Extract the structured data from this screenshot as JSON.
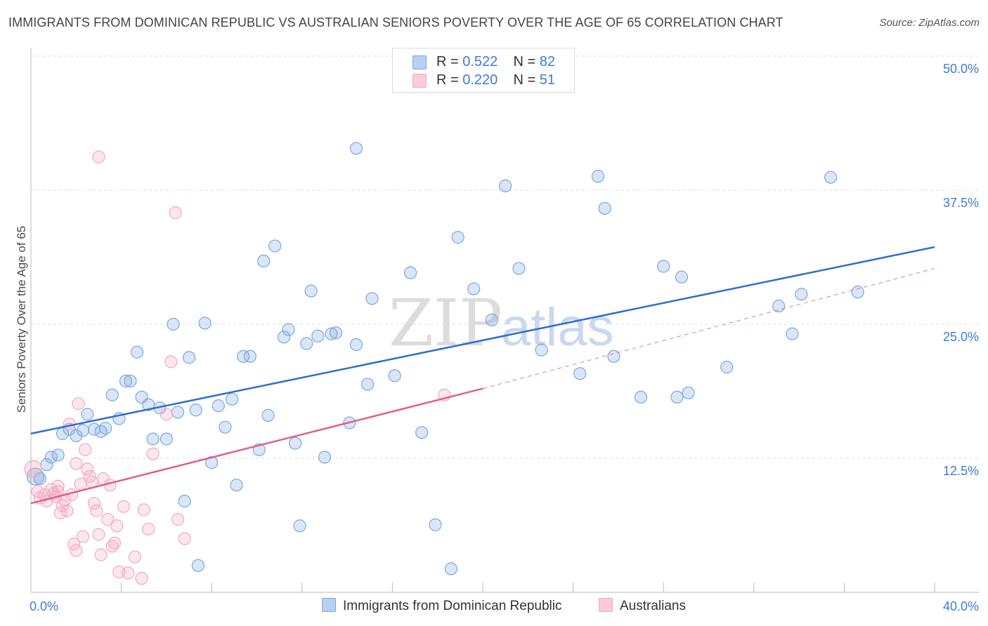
{
  "title": "IMMIGRANTS FROM DOMINICAN REPUBLIC VS AUSTRALIAN SENIORS POVERTY OVER THE AGE OF 65 CORRELATION CHART",
  "source": "Source: ZipAtlas.com",
  "watermark": {
    "zip": "ZIP",
    "atlas": "atlas"
  },
  "legend": {
    "r_label": "R =",
    "n_label": "N =",
    "rows": [
      {
        "r": "0.522",
        "n": "82"
      },
      {
        "r": "0.220",
        "n": "51"
      }
    ]
  },
  "chart_data": {
    "type": "scatter",
    "ylabel": "Seniors Poverty Over the Age of 65",
    "xlabel": "",
    "xlim": [
      0,
      40
    ],
    "ylim": [
      0,
      50
    ],
    "x_tick_labels": [
      "0.0%",
      "40.0%"
    ],
    "y_ticks": [
      12.5,
      25.0,
      37.5,
      50.0
    ],
    "y_tick_labels": [
      "12.5%",
      "25.0%",
      "37.5%",
      "50.0%"
    ],
    "grid": true,
    "legend_position": "top-center",
    "series": [
      {
        "name": "Immigrants from Dominican Republic",
        "color": "#7ba7e0",
        "line_color": "#2f6fcc",
        "trend": {
          "x": [
            0,
            40
          ],
          "y": [
            14.8,
            32.2
          ],
          "dashed_from": 40
        },
        "points": [
          [
            0.2,
            10.8
          ],
          [
            0.4,
            10.6
          ],
          [
            0.7,
            11.9
          ],
          [
            0.9,
            12.6
          ],
          [
            1.2,
            12.8
          ],
          [
            1.4,
            14.8
          ],
          [
            1.7,
            15.2
          ],
          [
            2.0,
            14.6
          ],
          [
            2.3,
            15.1
          ],
          [
            2.5,
            16.6
          ],
          [
            2.8,
            15.2
          ],
          [
            3.1,
            15.0
          ],
          [
            3.3,
            15.3
          ],
          [
            3.6,
            18.4
          ],
          [
            3.9,
            16.2
          ],
          [
            4.2,
            19.7
          ],
          [
            4.4,
            19.7
          ],
          [
            4.7,
            22.4
          ],
          [
            4.9,
            18.2
          ],
          [
            5.2,
            17.5
          ],
          [
            5.4,
            14.3
          ],
          [
            5.7,
            17.2
          ],
          [
            6.0,
            14.3
          ],
          [
            6.3,
            25.0
          ],
          [
            6.5,
            16.8
          ],
          [
            6.8,
            8.5
          ],
          [
            7.0,
            21.9
          ],
          [
            7.3,
            17.0
          ],
          [
            7.4,
            2.5
          ],
          [
            7.7,
            25.1
          ],
          [
            8.0,
            12.1
          ],
          [
            8.3,
            17.4
          ],
          [
            8.6,
            15.4
          ],
          [
            8.9,
            18.0
          ],
          [
            9.1,
            10.0
          ],
          [
            9.4,
            22.0
          ],
          [
            9.7,
            22.0
          ],
          [
            10.1,
            13.3
          ],
          [
            10.3,
            30.9
          ],
          [
            10.5,
            16.5
          ],
          [
            10.8,
            32.3
          ],
          [
            11.2,
            23.8
          ],
          [
            11.4,
            24.5
          ],
          [
            11.7,
            13.9
          ],
          [
            11.9,
            6.2
          ],
          [
            12.2,
            23.2
          ],
          [
            12.4,
            28.1
          ],
          [
            12.7,
            23.9
          ],
          [
            13.0,
            12.6
          ],
          [
            13.3,
            24.1
          ],
          [
            13.5,
            24.2
          ],
          [
            14.1,
            15.8
          ],
          [
            14.4,
            23.1
          ],
          [
            14.4,
            41.4
          ],
          [
            14.9,
            19.4
          ],
          [
            15.1,
            27.4
          ],
          [
            16.1,
            20.2
          ],
          [
            16.8,
            29.8
          ],
          [
            17.3,
            14.9
          ],
          [
            17.9,
            6.3
          ],
          [
            18.6,
            2.2
          ],
          [
            18.9,
            33.1
          ],
          [
            19.6,
            28.3
          ],
          [
            20.4,
            25.4
          ],
          [
            21.0,
            37.9
          ],
          [
            21.6,
            30.2
          ],
          [
            22.6,
            22.6
          ],
          [
            24.3,
            20.4
          ],
          [
            25.1,
            38.8
          ],
          [
            25.4,
            35.8
          ],
          [
            25.8,
            22.0
          ],
          [
            27.0,
            18.2
          ],
          [
            28.0,
            30.4
          ],
          [
            28.6,
            18.2
          ],
          [
            28.8,
            29.4
          ],
          [
            29.1,
            18.6
          ],
          [
            30.8,
            21.0
          ],
          [
            33.1,
            26.7
          ],
          [
            33.7,
            24.1
          ],
          [
            34.1,
            27.8
          ],
          [
            35.4,
            38.7
          ],
          [
            36.6,
            28.0
          ]
        ]
      },
      {
        "name": "Australians",
        "color": "#f3a8c1",
        "line_color": "#e0608a",
        "trend": {
          "x": [
            0,
            20,
            40
          ],
          "y": [
            8.3,
            19.0,
            30.2
          ],
          "dashed_from": 20
        },
        "points": [
          [
            0.1,
            11.5
          ],
          [
            0.3,
            9.4
          ],
          [
            0.4,
            8.8
          ],
          [
            0.6,
            9.1
          ],
          [
            0.7,
            8.5
          ],
          [
            0.9,
            9.6
          ],
          [
            1.0,
            9.2
          ],
          [
            1.1,
            8.9
          ],
          [
            1.2,
            9.4
          ],
          [
            1.3,
            7.4
          ],
          [
            1.4,
            8.1
          ],
          [
            1.5,
            8.6
          ],
          [
            1.6,
            7.6
          ],
          [
            1.7,
            15.7
          ],
          [
            1.8,
            9.1
          ],
          [
            1.9,
            4.5
          ],
          [
            2.0,
            3.9
          ],
          [
            2.1,
            17.6
          ],
          [
            2.2,
            10.1
          ],
          [
            2.3,
            5.2
          ],
          [
            2.4,
            13.3
          ],
          [
            2.5,
            11.5
          ],
          [
            2.6,
            10.8
          ],
          [
            2.7,
            10.3
          ],
          [
            2.8,
            8.3
          ],
          [
            2.9,
            7.6
          ],
          [
            3.0,
            5.4
          ],
          [
            3.1,
            3.5
          ],
          [
            3.2,
            10.6
          ],
          [
            3.4,
            6.8
          ],
          [
            3.5,
            10.0
          ],
          [
            3.6,
            4.3
          ],
          [
            3.7,
            4.6
          ],
          [
            3.8,
            6.2
          ],
          [
            3.9,
            1.9
          ],
          [
            4.1,
            8.0
          ],
          [
            4.3,
            1.8
          ],
          [
            4.6,
            3.3
          ],
          [
            4.9,
            1.3
          ],
          [
            5.0,
            7.7
          ],
          [
            5.2,
            5.9
          ],
          [
            5.4,
            12.9
          ],
          [
            6.0,
            16.6
          ],
          [
            6.2,
            21.5
          ],
          [
            6.4,
            35.4
          ],
          [
            6.5,
            6.8
          ],
          [
            6.8,
            5.0
          ],
          [
            3.0,
            40.6
          ],
          [
            18.3,
            18.4
          ],
          [
            2.0,
            12.0
          ],
          [
            1.2,
            9.9
          ]
        ]
      }
    ]
  }
}
